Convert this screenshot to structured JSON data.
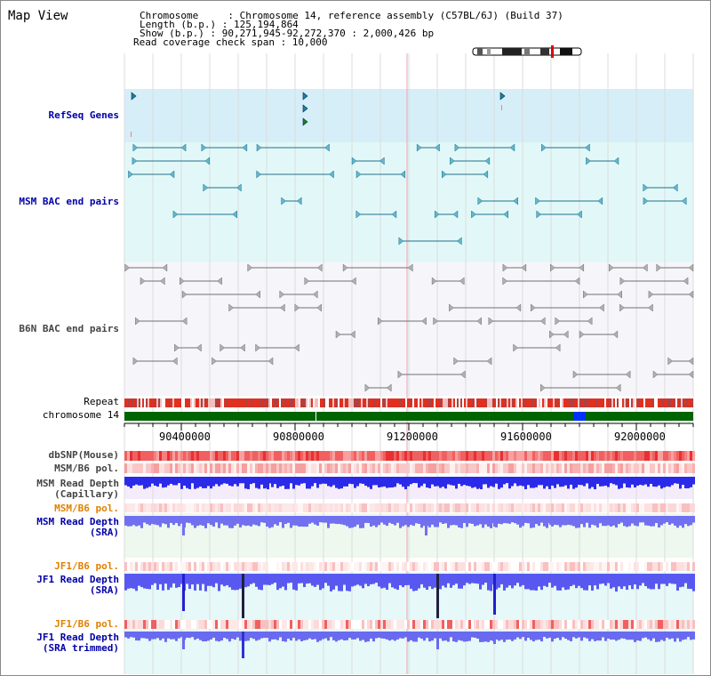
{
  "panel_title": "Map View",
  "info": {
    "line1": "Chromosome     : Chromosome 14, reference assembly (C57BL/6J) (Build 37)",
    "line2": "Length (b.p.) : 125,194,864",
    "line3": "Show (b.p.) : 90,271,945-92,272,370 : 2,000,426 bp",
    "line4": "Read coverage check span : 10,000"
  },
  "tracks": {
    "refseq": "RefSeq Genes",
    "msm_bac": "MSM BAC end pairs",
    "b6n_bac": "B6N BAC end pairs",
    "repeat": "Repeat",
    "chromosome": "chromosome 14",
    "dbsnp": "dbSNP(Mouse)",
    "msm_b6_pol_1": "MSM/B6 pol.",
    "msm_read_depth_cap_1": "MSM Read Depth",
    "msm_read_depth_cap_2": "(Capillary)",
    "msm_b6_pol_2": "MSM/B6 pol.",
    "msm_read_depth_sra_1": "MSM Read Depth",
    "msm_read_depth_sra_2": "(SRA)",
    "jf1_b6_pol_1": "JF1/B6 pol.",
    "jf1_read_depth_sra_1": "JF1 Read Depth",
    "jf1_read_depth_sra_2": "(SRA)",
    "jf1_b6_pol_2": "JF1/B6 pol.",
    "jf1_read_depth_trim_1": "JF1 Read Depth",
    "jf1_read_depth_trim_2": "(SRA trimmed)"
  },
  "axis": {
    "ticks": [
      "90400000",
      "90800000",
      "91200000",
      "91600000",
      "92000000"
    ]
  },
  "colors": {
    "refseq_bg": "#d6eef8",
    "msm_bg": "#e2f8f8",
    "b6n_bg": "#f6f6fa",
    "chromosome": "#006400",
    "repeat_red": "#e03020",
    "depth_blue": "#2020e0",
    "depth_light": "#7070f0",
    "pol_pink": "#f8c0c0"
  }
}
